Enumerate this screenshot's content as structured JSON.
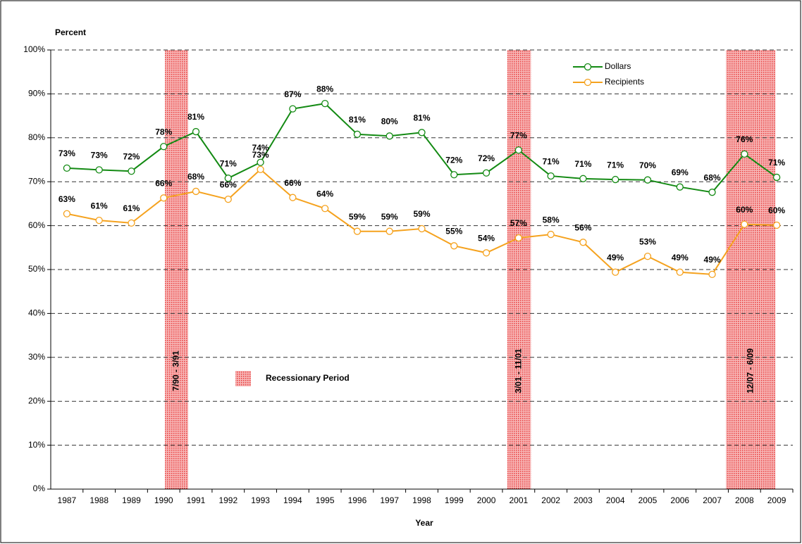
{
  "chart_data": {
    "type": "line",
    "y_label": "Percent",
    "x_label": "Year",
    "categories": [
      "1987",
      "1988",
      "1989",
      "1990",
      "1991",
      "1992",
      "1993",
      "1994",
      "1995",
      "1996",
      "1997",
      "1998",
      "1999",
      "2000",
      "2001",
      "2002",
      "2003",
      "2004",
      "2005",
      "2006",
      "2007",
      "2008",
      "2009"
    ],
    "series": [
      {
        "name": "Dollars",
        "color": "#138a13",
        "values": [
          73.1,
          72.7,
          72.4,
          78,
          81.4,
          70.8,
          74.4,
          86.6,
          87.8,
          80.8,
          80.4,
          81.2,
          71.6,
          72,
          77.2,
          71.3,
          70.7,
          70.5,
          70.4,
          68.8,
          67.6,
          76.3,
          71
        ],
        "value_labels": [
          "73%",
          "73%",
          "72%",
          "78%",
          "81%",
          "71%",
          "74%",
          "87%",
          "88%",
          "81%",
          "80%",
          "81%",
          "72%",
          "72%",
          "77%",
          "71%",
          "71%",
          "71%",
          "70%",
          "69%",
          "68%",
          "76%",
          "71%"
        ]
      },
      {
        "name": "Recipients",
        "color": "#f5a21e",
        "values": [
          62.7,
          61.2,
          60.6,
          66.3,
          67.8,
          66,
          72.8,
          66.4,
          63.9,
          58.7,
          58.7,
          59.3,
          55.4,
          53.8,
          57.2,
          58,
          56.2,
          49.4,
          53,
          49.4,
          48.9,
          60.3,
          60.1
        ],
        "value_labels": [
          "63%",
          "61%",
          "61%",
          "66%",
          "68%",
          "66%",
          "73%",
          "66%",
          "64%",
          "59%",
          "59%",
          "59%",
          "55%",
          "54%",
          "57%",
          "58%",
          "56%",
          "49%",
          "53%",
          "49%",
          "49%",
          "60%",
          "60%"
        ]
      }
    ],
    "ylim": [
      0,
      100
    ],
    "yticks": [
      {
        "value": 0,
        "label": "0%"
      },
      {
        "value": 10,
        "label": "10%"
      },
      {
        "value": 20,
        "label": "20%"
      },
      {
        "value": 30,
        "label": "30%"
      },
      {
        "value": 40,
        "label": "40%"
      },
      {
        "value": 50,
        "label": "50%"
      },
      {
        "value": 60,
        "label": "60%"
      },
      {
        "value": 70,
        "label": "70%"
      },
      {
        "value": 80,
        "label": "80%"
      },
      {
        "value": 90,
        "label": "90%"
      },
      {
        "value": 100,
        "label": "100%"
      }
    ],
    "grid": true,
    "legend": "upper right",
    "recession_legend": "Recessionary Period",
    "recessions": [
      "7/90 - 3/91",
      "3/01 - 11/01",
      "12/07 - 6/09"
    ]
  }
}
